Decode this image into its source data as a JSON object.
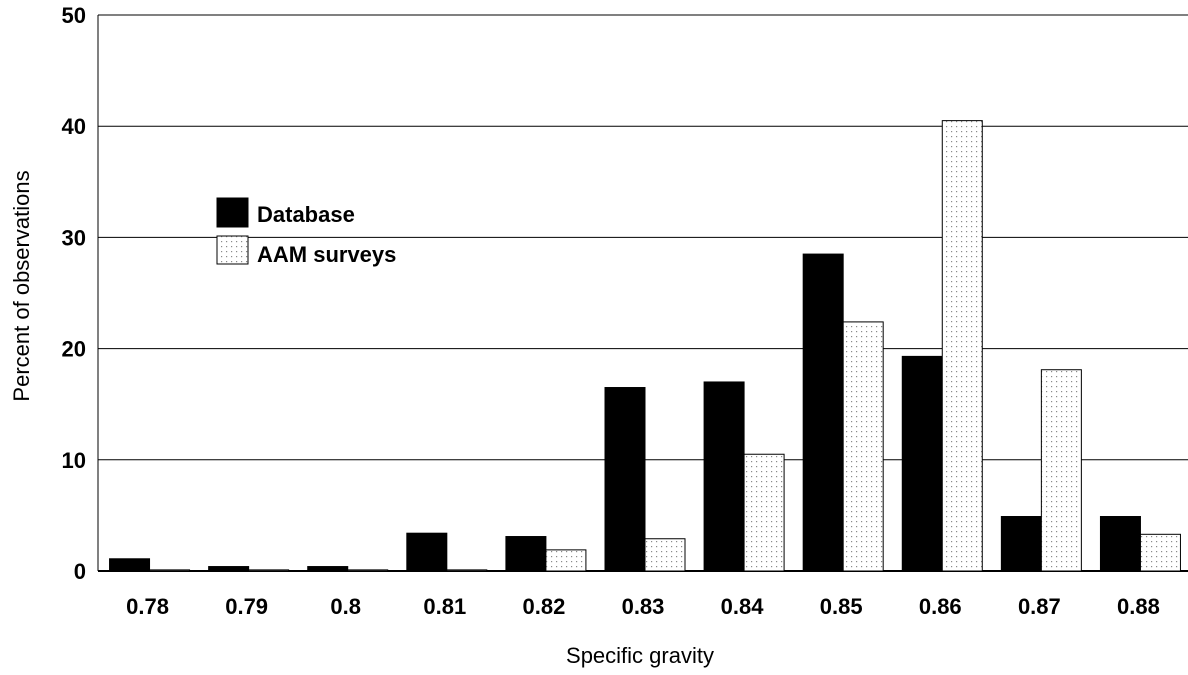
{
  "chart_data": {
    "type": "bar",
    "xlabel": "Specific gravity",
    "ylabel": "Percent of observations",
    "ylim": [
      0,
      50
    ],
    "yticks": [
      "0",
      "10",
      "20",
      "30",
      "40",
      "50"
    ],
    "categories": [
      "0.78",
      "0.79",
      "0.8",
      "0.81",
      "0.82",
      "0.83",
      "0.84",
      "0.85",
      "0.86",
      "0.87",
      "0.88"
    ],
    "series": [
      {
        "name": "Database",
        "fill": "solid",
        "color": "#000000",
        "values": [
          1.1,
          0.4,
          0.4,
          3.4,
          3.1,
          16.5,
          17.0,
          28.5,
          19.3,
          4.9,
          4.9
        ]
      },
      {
        "name": "AAM surveys",
        "fill": "dotted",
        "color": "#ffffff",
        "values": [
          0.1,
          0.1,
          0.1,
          0.1,
          1.9,
          2.9,
          10.5,
          22.4,
          40.5,
          18.1,
          3.3
        ]
      }
    ],
    "grid": "horizontal",
    "legend_position": "upper-left"
  }
}
